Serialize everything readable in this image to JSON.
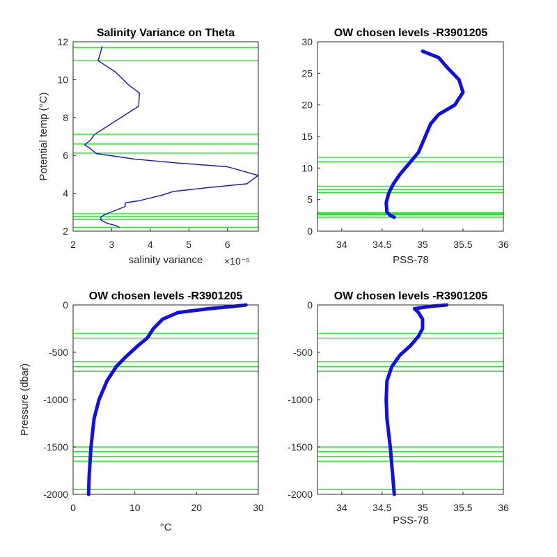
{
  "colors": {
    "profile": "#1010e0",
    "level": "#22ee22",
    "axis": "#262626",
    "background": "#ffffff"
  },
  "chart_data": [
    {
      "id": "var",
      "type": "line",
      "title": "Salinity Variance on Theta",
      "xlabel": "salinity variance",
      "ylabel": "Potential temp (°C)",
      "exponent_label": "×10⁻⁵",
      "xlim": [
        2,
        6.8
      ],
      "ylim": [
        2,
        12
      ],
      "xticks": [
        "2",
        "3",
        "4",
        "5",
        "6"
      ],
      "yticks": [
        "2",
        "4",
        "6",
        "8",
        "10",
        "12"
      ],
      "grid": false,
      "legend": "none",
      "series": [
        {
          "values": [
            [
              3.2,
              2.2
            ],
            [
              3.1,
              2.3
            ],
            [
              2.9,
              2.4
            ],
            [
              2.8,
              2.5
            ],
            [
              2.72,
              2.6
            ],
            [
              2.72,
              2.75
            ],
            [
              2.85,
              2.9
            ],
            [
              3.35,
              3.3
            ],
            [
              3.35,
              3.5
            ],
            [
              3.7,
              3.6
            ],
            [
              4.3,
              3.9
            ],
            [
              4.6,
              4.1
            ],
            [
              5.5,
              4.3
            ],
            [
              6.5,
              4.5
            ],
            [
              6.8,
              4.95
            ],
            [
              6.7,
              5.0
            ],
            [
              6.0,
              5.4
            ],
            [
              4.7,
              5.6
            ],
            [
              3.6,
              5.8
            ],
            [
              2.6,
              6.1
            ],
            [
              2.42,
              6.4
            ],
            [
              2.3,
              6.55
            ],
            [
              2.35,
              6.65
            ],
            [
              2.45,
              6.8
            ],
            [
              2.55,
              7.1
            ],
            [
              3.7,
              8.6
            ],
            [
              3.72,
              9.3
            ],
            [
              3.45,
              9.7
            ],
            [
              3.1,
              10.4
            ],
            [
              2.65,
              11.0
            ],
            [
              2.72,
              11.5
            ],
            [
              2.75,
              11.75
            ]
          ]
        }
      ],
      "levels": [
        2.2,
        2.62,
        2.78,
        2.92,
        6.12,
        6.6,
        7.12,
        11.0,
        11.7
      ]
    },
    {
      "id": "ts",
      "type": "line",
      "title": "OW chosen levels -R3901205",
      "xlabel": "PSS-78",
      "ylabel": "",
      "xlim": [
        33.7,
        36
      ],
      "ylim": [
        0,
        30
      ],
      "xticks": [
        "34",
        "34.5",
        "35",
        "35.5",
        "36"
      ],
      "yticks": [
        "0",
        "5",
        "10",
        "15",
        "20",
        "25",
        "30"
      ],
      "grid": false,
      "legend": "none",
      "series": [
        {
          "values": [
            [
              34.65,
              2.2
            ],
            [
              34.6,
              2.5
            ],
            [
              34.56,
              3.0
            ],
            [
              34.55,
              4.5
            ],
            [
              34.58,
              6.0
            ],
            [
              34.64,
              7.5
            ],
            [
              34.72,
              9.0
            ],
            [
              34.82,
              10.5
            ],
            [
              34.95,
              12.5
            ],
            [
              35.0,
              14.0
            ],
            [
              35.05,
              15.5
            ],
            [
              35.1,
              17.0
            ],
            [
              35.2,
              18.5
            ],
            [
              35.4,
              20.0
            ],
            [
              35.5,
              22.0
            ],
            [
              35.45,
              24.0
            ],
            [
              35.3,
              26.0
            ],
            [
              35.2,
              27.5
            ],
            [
              35.0,
              28.5
            ]
          ]
        }
      ],
      "levels": [
        2.2,
        2.62,
        2.78,
        2.92,
        6.12,
        6.6,
        7.12,
        11.0,
        11.7
      ]
    },
    {
      "id": "tp",
      "type": "line",
      "title": "OW chosen levels -R3901205",
      "xlabel": "°C",
      "ylabel": "Pressure (dbar)",
      "xlim": [
        0,
        30
      ],
      "ylim": [
        -2000,
        0
      ],
      "xticks": [
        "0",
        "10",
        "20",
        "30"
      ],
      "yticks": [
        "-2000",
        "-1500",
        "-1000",
        "-500",
        "0"
      ],
      "grid": false,
      "legend": "none",
      "series": [
        {
          "values": [
            [
              2.5,
              -2000
            ],
            [
              2.6,
              -1800
            ],
            [
              2.9,
              -1500
            ],
            [
              3.4,
              -1200
            ],
            [
              4.2,
              -1000
            ],
            [
              5.5,
              -800
            ],
            [
              7.0,
              -650
            ],
            [
              8.5,
              -550
            ],
            [
              10.5,
              -430
            ],
            [
              12.0,
              -350
            ],
            [
              13.0,
              -250
            ],
            [
              14.5,
              -150
            ],
            [
              17.0,
              -80
            ],
            [
              22.0,
              -40
            ],
            [
              26.0,
              -15
            ],
            [
              28.0,
              0
            ]
          ]
        }
      ],
      "levels": [
        -300,
        -350,
        -600,
        -650,
        -700,
        -1500,
        -1550,
        -1600,
        -1650,
        -1950
      ]
    },
    {
      "id": "sp",
      "type": "line",
      "title": "OW chosen levels -R3901205",
      "xlabel": "PSS-78",
      "ylabel": "",
      "xlim": [
        33.7,
        36
      ],
      "ylim": [
        -2000,
        0
      ],
      "xticks": [
        "34",
        "34.5",
        "35",
        "35.5",
        "36"
      ],
      "yticks": [
        "-2000",
        "-1500",
        "-1000",
        "-500",
        "0"
      ],
      "grid": false,
      "legend": "none",
      "series": [
        {
          "values": [
            [
              34.65,
              -2000
            ],
            [
              34.63,
              -1800
            ],
            [
              34.6,
              -1500
            ],
            [
              34.56,
              -1200
            ],
            [
              34.55,
              -1000
            ],
            [
              34.56,
              -800
            ],
            [
              34.62,
              -650
            ],
            [
              34.72,
              -530
            ],
            [
              34.85,
              -430
            ],
            [
              34.95,
              -330
            ],
            [
              35.0,
              -250
            ],
            [
              35.0,
              -150
            ],
            [
              34.95,
              -80
            ],
            [
              34.9,
              -40
            ],
            [
              35.1,
              -15
            ],
            [
              35.3,
              0
            ]
          ]
        }
      ],
      "levels": [
        -300,
        -350,
        -600,
        -650,
        -700,
        -1500,
        -1550,
        -1600,
        -1650,
        -1950
      ]
    }
  ]
}
